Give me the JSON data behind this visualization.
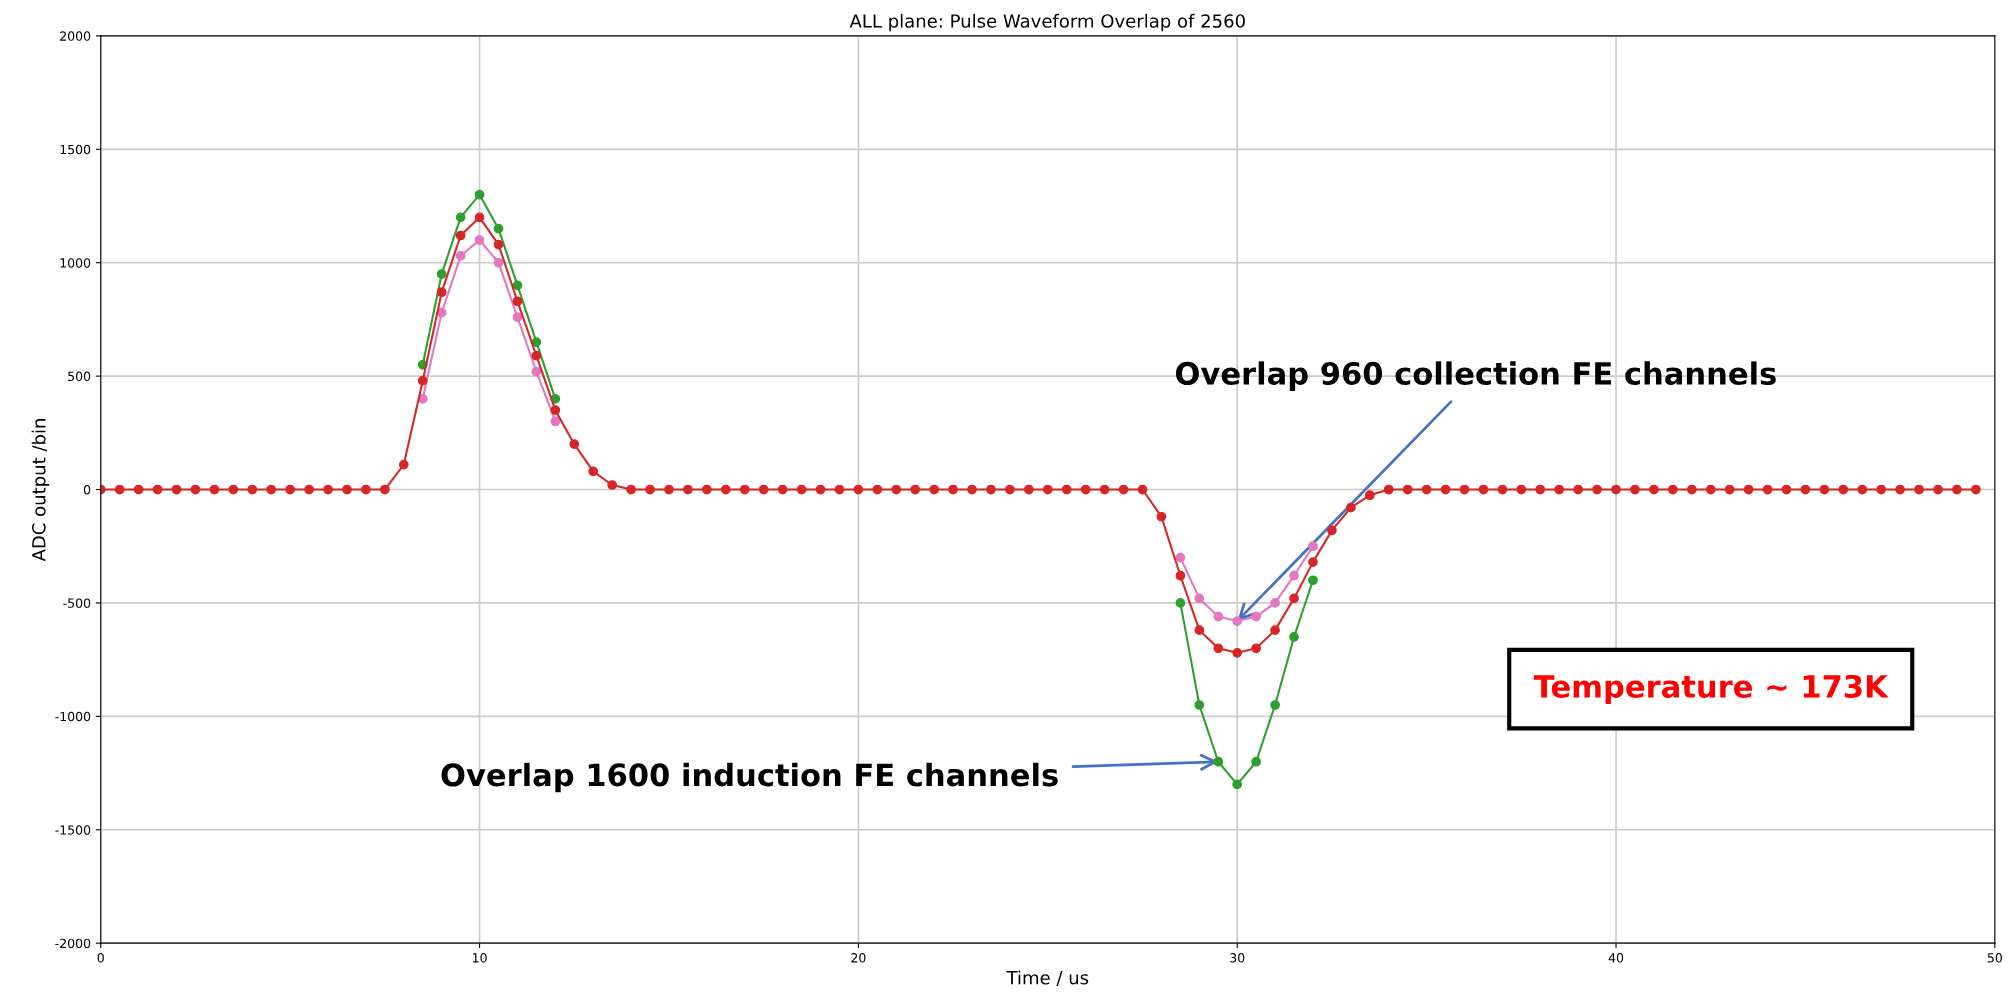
{
  "chart_data": {
    "type": "line",
    "title": "ALL plane: Pulse Waveform Overlap of 2560",
    "xlabel": "Time / us",
    "ylabel": "ADC output /bin",
    "x": [
      0,
      0.5,
      1,
      1.5,
      2,
      2.5,
      3,
      3.5,
      4,
      4.5,
      5,
      5.5,
      6,
      6.5,
      7,
      7.5,
      8,
      8.5,
      9,
      9.5,
      10,
      10.5,
      11,
      11.5,
      12,
      12.5,
      13,
      13.5,
      14,
      14.5,
      15,
      15.5,
      16,
      16.5,
      17,
      17.5,
      18,
      18.5,
      19,
      19.5,
      20,
      20.5,
      21,
      21.5,
      22,
      22.5,
      23,
      23.5,
      24,
      24.5,
      25,
      25.5,
      26,
      26.5,
      27,
      27.5,
      28,
      28.5,
      29,
      29.5,
      30,
      30.5,
      31,
      31.5,
      32,
      32.5,
      33,
      33.5,
      34,
      34.5,
      35,
      35.5,
      36,
      36.5,
      37,
      37.5,
      38,
      38.5,
      39,
      39.5,
      40,
      40.5,
      41,
      41.5,
      42,
      42.5,
      43,
      43.5,
      44,
      44.5,
      45,
      45.5,
      46,
      46.5,
      47,
      47.5,
      48,
      48.5,
      49,
      49.5
    ],
    "series": [
      {
        "color": "#2ca02c",
        "values": [
          null,
          null,
          null,
          null,
          null,
          null,
          null,
          null,
          null,
          null,
          null,
          null,
          null,
          null,
          null,
          null,
          null,
          550,
          950,
          1200,
          1300,
          1150,
          900,
          650,
          400,
          null,
          null,
          null,
          null,
          null,
          null,
          null,
          null,
          null,
          null,
          null,
          null,
          null,
          null,
          null,
          null,
          null,
          null,
          null,
          null,
          null,
          null,
          null,
          null,
          null,
          null,
          null,
          null,
          null,
          null,
          null,
          null,
          -500,
          -950,
          -1200,
          -1300,
          -1200,
          -950,
          -650,
          -400,
          null,
          null,
          null,
          null,
          null,
          null,
          null,
          null,
          null,
          null,
          null,
          null,
          null,
          null,
          null,
          null,
          null,
          null,
          null,
          null,
          null,
          null,
          null,
          null,
          null,
          null,
          null,
          null,
          null,
          null,
          null,
          null,
          null,
          null,
          null
        ]
      },
      {
        "color": "#e377c2",
        "values": [
          null,
          null,
          null,
          null,
          null,
          null,
          null,
          null,
          null,
          null,
          null,
          null,
          null,
          null,
          null,
          null,
          null,
          400,
          780,
          1030,
          1100,
          1000,
          760,
          520,
          300,
          null,
          null,
          null,
          null,
          null,
          null,
          null,
          null,
          null,
          null,
          null,
          null,
          null,
          null,
          null,
          null,
          null,
          null,
          null,
          null,
          null,
          null,
          null,
          null,
          null,
          null,
          null,
          null,
          null,
          null,
          null,
          null,
          -300,
          -480,
          -560,
          -580,
          -560,
          -500,
          -380,
          -250,
          null,
          null,
          null,
          null,
          null,
          null,
          null,
          null,
          null,
          null,
          null,
          null,
          null,
          null,
          null,
          null,
          null,
          null,
          null,
          null,
          null,
          null,
          null,
          null,
          null,
          null,
          null,
          null,
          null,
          null,
          null,
          null,
          null,
          null,
          null
        ]
      },
      {
        "color": "#d62728",
        "values": [
          0,
          0,
          0,
          0,
          0,
          0,
          0,
          0,
          0,
          0,
          0,
          0,
          0,
          0,
          0,
          0,
          110,
          480,
          870,
          1120,
          1200,
          1080,
          830,
          590,
          350,
          200,
          80,
          20,
          0,
          0,
          0,
          0,
          0,
          0,
          0,
          0,
          0,
          0,
          0,
          0,
          0,
          0,
          0,
          0,
          0,
          0,
          0,
          0,
          0,
          0,
          0,
          0,
          0,
          0,
          0,
          0,
          -120,
          -380,
          -620,
          -700,
          -720,
          -700,
          -620,
          -480,
          -320,
          -180,
          -80,
          -25,
          0,
          0,
          0,
          0,
          0,
          0,
          0,
          0,
          0,
          0,
          0,
          0,
          0,
          0,
          0,
          0,
          0,
          0,
          0,
          0,
          0,
          0,
          0,
          0,
          0,
          0,
          0,
          0,
          0,
          0,
          0,
          0
        ]
      }
    ],
    "xlim": [
      0,
      50
    ],
    "xticks": [
      0,
      10,
      20,
      30,
      40,
      50
    ],
    "ylim": [
      -2000,
      2000
    ],
    "yticks": [
      -2000,
      -1500,
      -1000,
      -500,
      0,
      500,
      1000,
      1500,
      2000
    ],
    "grid": true,
    "marker": "circle",
    "line_style": "solid",
    "annotations": [
      {
        "text": "Overlap 960 collection FE channels",
        "x": 30,
        "y": -580
      },
      {
        "text": "Overlap 1600 induction FE channels",
        "x": 29.5,
        "y": -1200
      },
      "Temperature ∼ 173K"
    ]
  }
}
